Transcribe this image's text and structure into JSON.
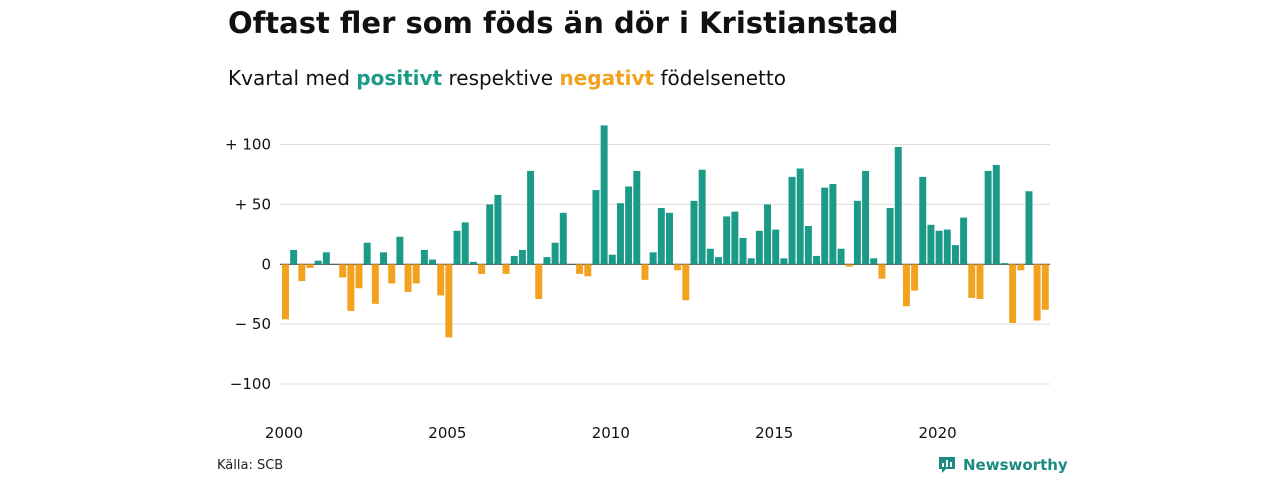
{
  "header": {
    "title": "Oftast fler som föds än dör i Kristianstad",
    "subtitle_prefix": "Kvartal med ",
    "subtitle_positive": "positivt",
    "subtitle_middle": " respektive ",
    "subtitle_negative": "negativt",
    "subtitle_suffix": " födelsenetto"
  },
  "footer": {
    "source": "Källa: SCB",
    "brand": "Newsworthy",
    "logo_icon": "newsworthy-bar-logo-icon"
  },
  "colors": {
    "positive": "#1b9a88",
    "negative": "#f2a21e",
    "grid": "#dddddd",
    "text": "#111111"
  },
  "chart_data": {
    "type": "bar",
    "x_start": 2000.0,
    "x_step": 0.25,
    "xlim": [
      2000,
      2023.5
    ],
    "ylim": [
      -115,
      118
    ],
    "x_ticks": [
      2000,
      2005,
      2010,
      2015,
      2020
    ],
    "x_tick_labels": [
      "2000",
      "2005",
      "2010",
      "2015",
      "2020"
    ],
    "y_ticks": [
      100,
      50,
      0,
      -50,
      -100
    ],
    "y_tick_labels": [
      "+ 100",
      "+  50",
      "0",
      "− 50",
      "−100"
    ],
    "grid": true,
    "values": [
      -46,
      12,
      -14,
      -3,
      3,
      10,
      0,
      -11,
      -39,
      -20,
      18,
      -33,
      10,
      -16,
      23,
      -23,
      -16,
      12,
      4,
      -26,
      -61,
      28,
      35,
      2,
      -8,
      50,
      58,
      -8,
      7,
      12,
      78,
      -29,
      6,
      18,
      43,
      0,
      -8,
      -10,
      62,
      116,
      8,
      51,
      65,
      78,
      -13,
      10,
      47,
      43,
      -5,
      -30,
      53,
      79,
      13,
      6,
      40,
      44,
      22,
      5,
      28,
      50,
      29,
      5,
      73,
      80,
      32,
      7,
      64,
      67,
      13,
      -2,
      53,
      78,
      5,
      -12,
      47,
      98,
      -35,
      -22,
      73,
      33,
      28,
      29,
      16,
      39,
      -28,
      -29,
      78,
      83,
      1,
      -49,
      -5,
      61,
      -47,
      -38
    ]
  }
}
